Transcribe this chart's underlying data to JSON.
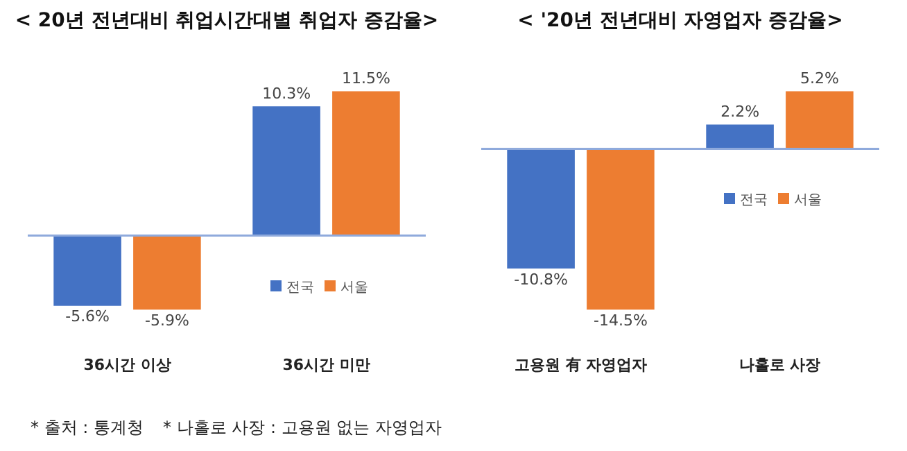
{
  "chart_data": [
    {
      "type": "bar",
      "title": "< 20년 전년대비 취업시간대별 취업자 증감율>",
      "categories": [
        "36시간 이상",
        "36시간 미만"
      ],
      "series": [
        {
          "name": "전국",
          "color": "#4472c4",
          "values": [
            -5.6,
            10.3
          ],
          "value_labels": [
            "-5.6%",
            "10.3%"
          ]
        },
        {
          "name": "서울",
          "color": "#ed7d31",
          "values": [
            -5.9,
            11.5
          ],
          "value_labels": [
            "-5.9%",
            "11.5%"
          ]
        }
      ],
      "legend": "right",
      "ref_lines": [
        {
          "axis": "y",
          "value": 0,
          "color": "#8faadc"
        }
      ],
      "annotations": [
        "* 출처 : 통계청",
        "* 나홀로 사장 : 고용원 없는 자영업자"
      ]
    },
    {
      "type": "bar",
      "title": "< '20년 전년대비 자영업자 증감율>",
      "categories": [
        "고용원 有 자영업자",
        "나홀로 사장"
      ],
      "series": [
        {
          "name": "전국",
          "color": "#4472c4",
          "values": [
            -10.8,
            2.2
          ],
          "value_labels": [
            "-10.8%",
            "2.2%"
          ]
        },
        {
          "name": "서울",
          "color": "#ed7d31",
          "values": [
            -14.5,
            5.2
          ],
          "value_labels": [
            "-14.5%",
            "5.2%"
          ]
        }
      ],
      "legend": "right",
      "ref_lines": [
        {
          "axis": "y",
          "value": 0,
          "color": "#8faadc"
        }
      ]
    }
  ]
}
